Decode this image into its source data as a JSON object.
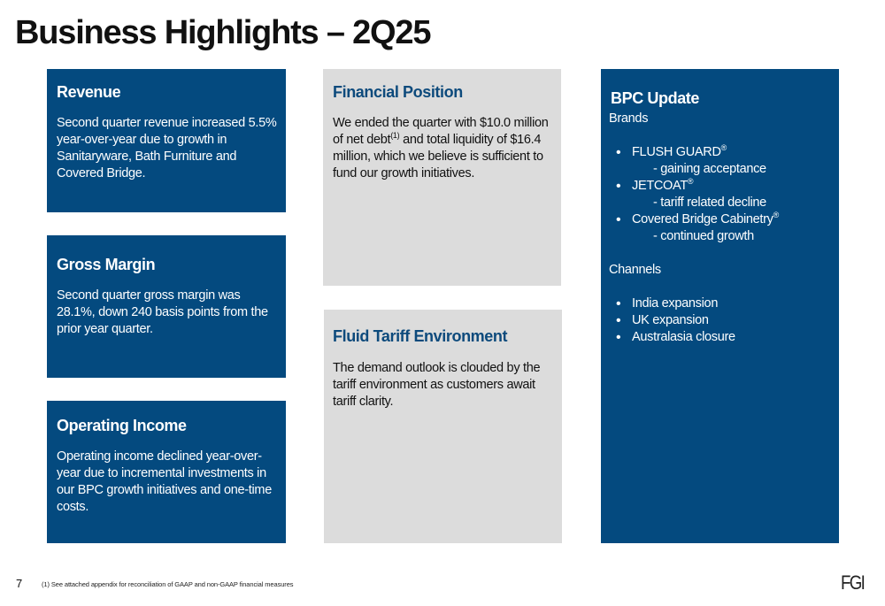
{
  "title": "Business Highlights – 2Q25",
  "boxes": {
    "revenue": {
      "heading": "Revenue",
      "body": "Second quarter revenue increased 5.5% year-over-year due to growth in Sanitaryware, Bath Furniture and Covered Bridge."
    },
    "gross_margin": {
      "heading": "Gross Margin",
      "body": "Second quarter gross margin was 28.1%, down 240 basis points from the prior year quarter."
    },
    "operating_income": {
      "heading": "Operating Income",
      "body": "Operating income declined year-over-year due to incremental investments in our BPC growth initiatives and one-time costs."
    },
    "financial_position": {
      "heading": "Financial Position",
      "body_before": "We ended the quarter with $10.0 million of net debt",
      "footnote_ref": "(1)",
      "body_after": " and total liquidity of $16.4 million, which we believe is sufficient to fund our growth initiatives."
    },
    "fluid_tariff": {
      "heading": "Fluid Tariff Environment",
      "body": "The demand outlook is clouded by the tariff environment as customers await tariff clarity."
    },
    "bpc_update": {
      "heading": "BPC Update",
      "brands_label": "Brands",
      "brands": [
        {
          "name": "FLUSH GUARD",
          "mark": "®",
          "note": "- gaining acceptance"
        },
        {
          "name": "JETCOAT",
          "mark": "®",
          "note": "- tariff related decline"
        },
        {
          "name": "Covered Bridge Cabinetry",
          "mark": "®",
          "note": "- continued growth"
        }
      ],
      "channels_label": "Channels",
      "channels": [
        "India expansion",
        "UK expansion",
        "Australasia closure"
      ]
    }
  },
  "footer": {
    "page_number": "7",
    "footnote": "(1) See attached appendix for reconciliation of GAAP and non-GAAP financial measures",
    "logo": "FGI"
  },
  "colors": {
    "blue_panel": "#044A7F",
    "gray_panel": "#DCDCDC",
    "gray_heading": "#0D4A7C"
  }
}
